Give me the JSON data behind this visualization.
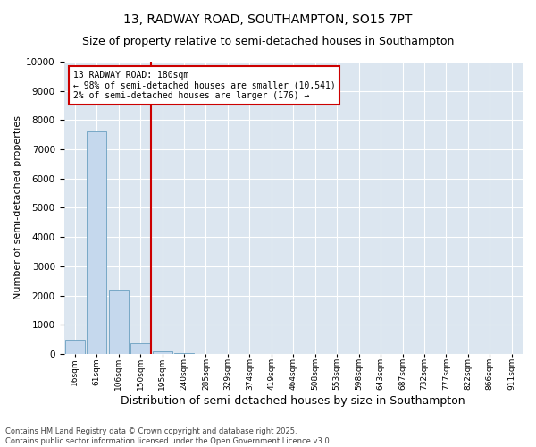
{
  "title": "13, RADWAY ROAD, SOUTHAMPTON, SO15 7PT",
  "subtitle": "Size of property relative to semi-detached houses in Southampton",
  "xlabel": "Distribution of semi-detached houses by size in Southampton",
  "ylabel": "Number of semi-detached properties",
  "categories": [
    "16sqm",
    "61sqm",
    "106sqm",
    "150sqm",
    "195sqm",
    "240sqm",
    "285sqm",
    "329sqm",
    "374sqm",
    "419sqm",
    "464sqm",
    "508sqm",
    "553sqm",
    "598sqm",
    "643sqm",
    "687sqm",
    "732sqm",
    "777sqm",
    "822sqm",
    "866sqm",
    "911sqm"
  ],
  "values": [
    500,
    7600,
    2200,
    350,
    100,
    20,
    5,
    2,
    1,
    1,
    1,
    0,
    0,
    0,
    0,
    0,
    0,
    0,
    0,
    0,
    0
  ],
  "bar_color": "#c5d8ed",
  "bar_edge_color": "#6a9fc0",
  "vline_color": "#cc0000",
  "vline_pos": 3.5,
  "vline_label": "13 RADWAY ROAD: 180sqm",
  "annotation_smaller": "← 98% of semi-detached houses are smaller (10,541)",
  "annotation_larger": "2% of semi-detached houses are larger (176) →",
  "annotation_box_color": "#cc0000",
  "ylim": [
    0,
    10000
  ],
  "yticks": [
    0,
    1000,
    2000,
    3000,
    4000,
    5000,
    6000,
    7000,
    8000,
    9000,
    10000
  ],
  "grid_color": "#ffffff",
  "bg_color": "#dce6f0",
  "footer": "Contains HM Land Registry data © Crown copyright and database right 2025.\nContains public sector information licensed under the Open Government Licence v3.0.",
  "title_fontsize": 10,
  "subtitle_fontsize": 9,
  "ylabel_fontsize": 8,
  "xlabel_fontsize": 9,
  "annotation_fontsize": 7,
  "tick_fontsize": 6.5,
  "ytick_fontsize": 7.5,
  "footer_fontsize": 6
}
